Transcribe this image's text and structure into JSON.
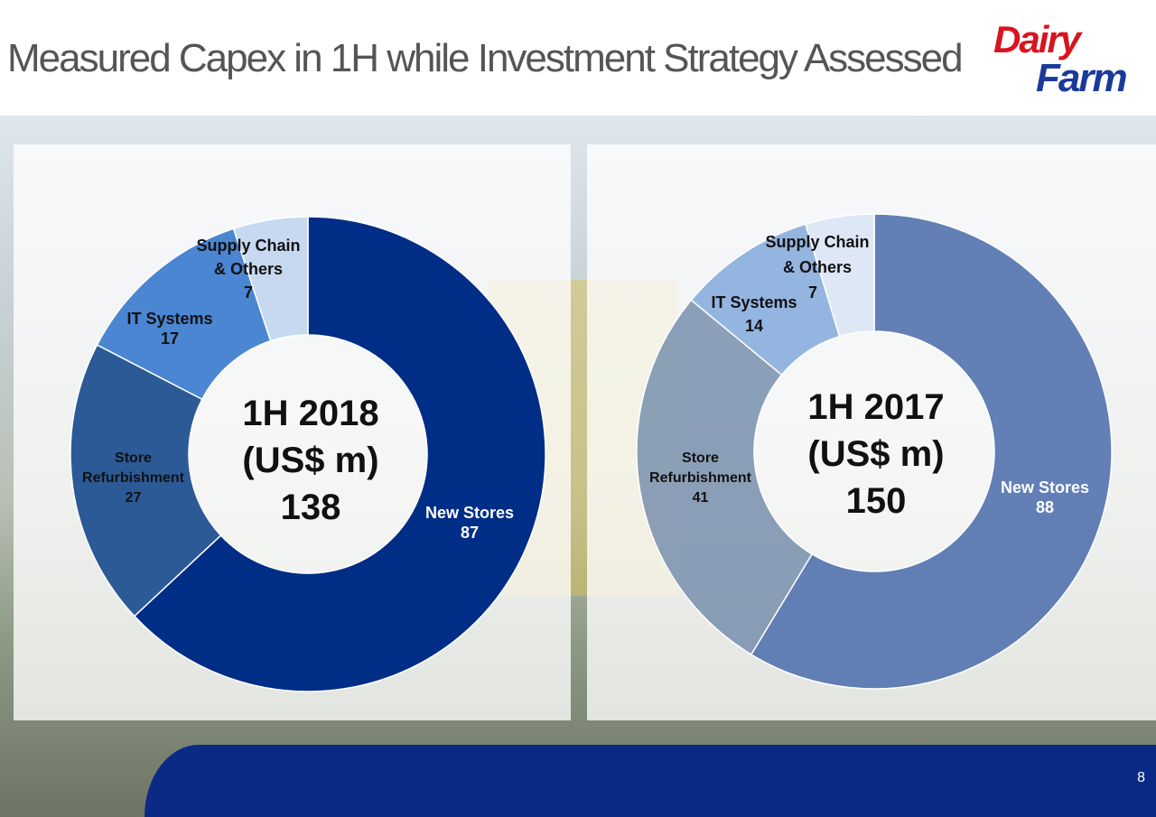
{
  "title": "Measured Capex in 1H while Investment Strategy Assessed",
  "logo": {
    "line1": "Dairy",
    "line2": "Farm"
  },
  "page_number": "8",
  "chart_data": [
    {
      "type": "pie",
      "variant": "donut",
      "center_label": {
        "period": "1H 2018",
        "unit": "(US$ m)",
        "total": "138"
      },
      "categories": [
        "New Stores",
        "Store Refurbishment",
        "IT Systems",
        "Supply Chain & Others"
      ],
      "values": [
        87,
        27,
        17,
        7
      ],
      "colors": [
        "#002d86",
        "#2c5a96",
        "#4a86d2",
        "#c6d9f1"
      ],
      "labels": [
        {
          "name": "New Stores",
          "value": "87"
        },
        {
          "name_line1": "Store",
          "name_line2": "Refurbishment",
          "value": "27"
        },
        {
          "name": "IT Systems",
          "value": "17"
        },
        {
          "name_line1": "Supply Chain",
          "name_line2": "& Others",
          "value": "7"
        }
      ]
    },
    {
      "type": "pie",
      "variant": "donut",
      "center_label": {
        "period": "1H 2017",
        "unit": "(US$ m)",
        "total": "150"
      },
      "categories": [
        "New Stores",
        "Store Refurbishment",
        "IT Systems",
        "Supply Chain & Others"
      ],
      "values": [
        88,
        41,
        14,
        7
      ],
      "colors": [
        "#5a78b2",
        "#7089a9",
        "#8fb1df",
        "#dbe6f5"
      ],
      "labels": [
        {
          "name": "New Stores",
          "value": "88"
        },
        {
          "name_line1": "Store",
          "name_line2": "Refurbishment",
          "value": "41"
        },
        {
          "name": "IT Systems",
          "value": "14"
        },
        {
          "name_line1": "Supply Chain",
          "name_line2": "& Others",
          "value": "7"
        }
      ]
    }
  ]
}
